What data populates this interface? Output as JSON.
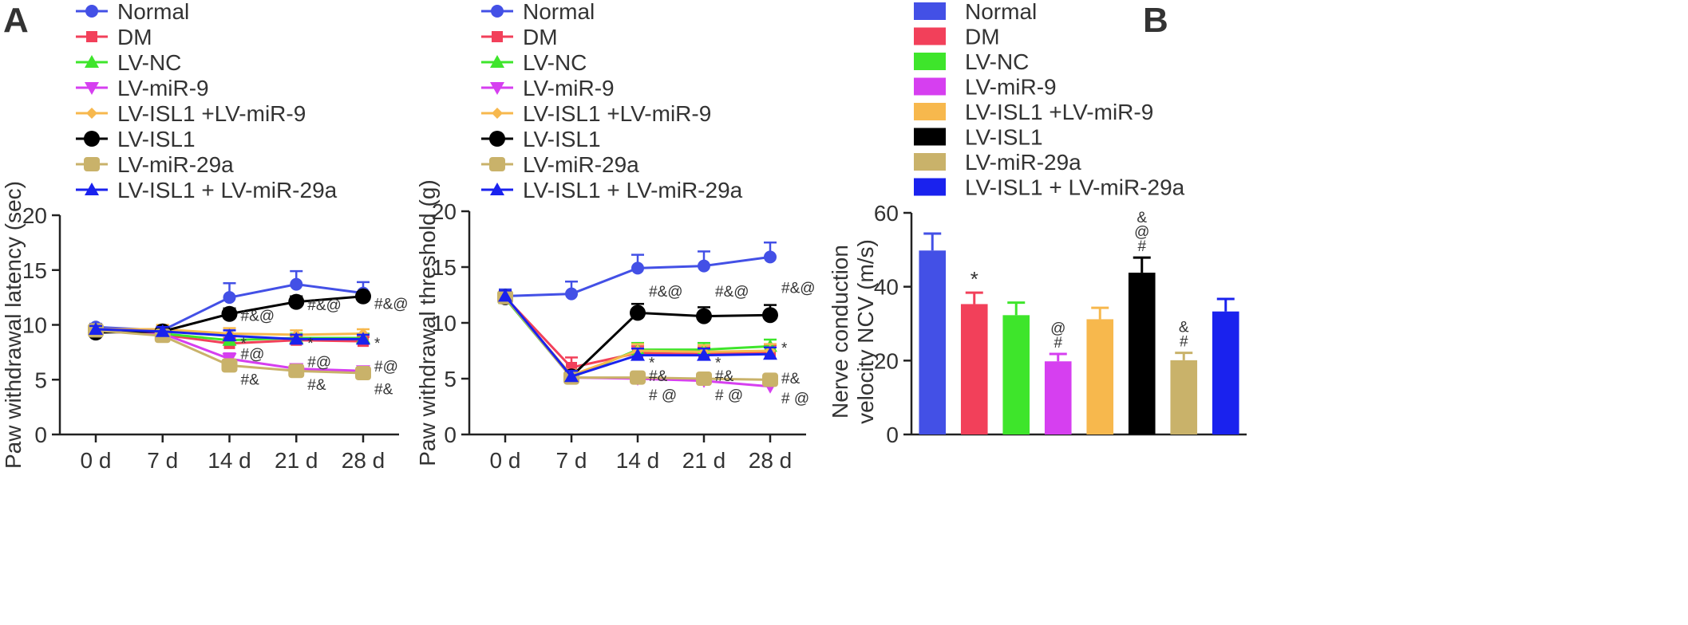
{
  "panels": {
    "a_letter": "A",
    "b_letter": "B"
  },
  "groups": [
    {
      "name": "Normal",
      "color": "#4350e6",
      "marker": "circle"
    },
    {
      "name": "DM",
      "color": "#f2405a",
      "marker": "square"
    },
    {
      "name": "LV-NC",
      "color": "#3ee52b",
      "marker": "triangle-up"
    },
    {
      "name": "LV-miR-9",
      "color": "#d63ff0",
      "marker": "triangle-down"
    },
    {
      "name": "LV-ISL1 +LV-miR-9",
      "color": "#f7b84d",
      "marker": "diamond"
    },
    {
      "name": "LV-ISL1",
      "color": "#000000",
      "marker": "circle-big"
    },
    {
      "name": "LV-miR-29a",
      "color": "#c9b26a",
      "marker": "square-round"
    },
    {
      "name": "LV-ISL1 + LV-miR-29a",
      "color": "#1a22ee",
      "marker": "triangle-up"
    }
  ],
  "chart_data": [
    {
      "type": "line",
      "ylabel": "Paw withdrawal latency (sec)",
      "categories": [
        "0 d",
        "7 d",
        "14 d",
        "21 d",
        "28 d"
      ],
      "ylim": [
        0,
        20
      ],
      "yticks": [
        0,
        5,
        10,
        15,
        20
      ],
      "series": [
        {
          "name": "Normal",
          "values": [
            9.8,
            9.5,
            12.5,
            13.7,
            12.9
          ],
          "errors": [
            0.3,
            0.4,
            1.3,
            1.2,
            1.0
          ]
        },
        {
          "name": "DM",
          "values": [
            9.5,
            9.1,
            8.3,
            8.6,
            8.5
          ],
          "errors": [
            0.3,
            0.4,
            0.5,
            0.4,
            0.4
          ]
        },
        {
          "name": "LV-NC",
          "values": [
            9.5,
            9.2,
            8.6,
            8.8,
            8.8
          ],
          "errors": [
            0.3,
            0.4,
            0.5,
            0.4,
            0.4
          ]
        },
        {
          "name": "LV-miR-9",
          "values": [
            9.4,
            9.2,
            6.9,
            6.0,
            5.8
          ],
          "errors": [
            0.3,
            0.4,
            0.5,
            0.4,
            0.4
          ]
        },
        {
          "name": "LV-ISL1 +LV-miR-9",
          "values": [
            9.6,
            9.6,
            9.2,
            9.1,
            9.2
          ],
          "errors": [
            0.3,
            0.4,
            0.5,
            0.4,
            0.4
          ]
        },
        {
          "name": "LV-ISL1",
          "values": [
            9.3,
            9.4,
            11.0,
            12.1,
            12.6
          ],
          "errors": [
            0.3,
            0.4,
            0.5,
            0.5,
            0.4
          ]
        },
        {
          "name": "LV-miR-29a",
          "values": [
            9.5,
            9.0,
            6.3,
            5.8,
            5.6
          ],
          "errors": [
            0.3,
            0.4,
            0.5,
            0.4,
            0.4
          ]
        },
        {
          "name": "LV-ISL1 + LV-miR-29a",
          "values": [
            9.6,
            9.4,
            9.0,
            8.7,
            8.7
          ],
          "errors": [
            0.3,
            0.4,
            0.5,
            0.4,
            0.4
          ]
        }
      ],
      "annotations": [
        {
          "text": "#&@",
          "x": "14 d",
          "y": 10.8
        },
        {
          "text": "*",
          "x": "14 d",
          "y": 8.3
        },
        {
          "text": "#@",
          "x": "14 d",
          "y": 7.3
        },
        {
          "text": "#&",
          "x": "14 d",
          "y": 5.0
        },
        {
          "text": "#&@",
          "x": "21 d",
          "y": 11.8
        },
        {
          "text": "*",
          "x": "21 d",
          "y": 8.3
        },
        {
          "text": "#@",
          "x": "21 d",
          "y": 6.6
        },
        {
          "text": "#&",
          "x": "21 d",
          "y": 4.5
        },
        {
          "text": "#&@",
          "x": "28 d",
          "y": 11.9
        },
        {
          "text": "*",
          "x": "28 d",
          "y": 8.3
        },
        {
          "text": "#@",
          "x": "28 d",
          "y": 6.2
        },
        {
          "text": "#&",
          "x": "28 d",
          "y": 4.1
        }
      ]
    },
    {
      "type": "line",
      "ylabel": "Paw withdrawal threshold (g)",
      "categories": [
        "0 d",
        "7 d",
        "14 d",
        "21 d",
        "28 d"
      ],
      "ylim": [
        0,
        20
      ],
      "yticks": [
        0,
        5,
        10,
        15,
        20
      ],
      "series": [
        {
          "name": "Normal",
          "values": [
            12.4,
            12.6,
            14.9,
            15.1,
            15.9
          ],
          "errors": [
            0.6,
            1.1,
            1.2,
            1.3,
            1.3
          ]
        },
        {
          "name": "DM",
          "values": [
            12.3,
            6.0,
            7.3,
            7.2,
            7.4
          ],
          "errors": [
            0.5,
            0.9,
            0.6,
            0.6,
            0.6
          ]
        },
        {
          "name": "LV-NC",
          "values": [
            12.2,
            5.1,
            7.6,
            7.6,
            7.9
          ],
          "errors": [
            0.5,
            0.5,
            0.6,
            0.6,
            0.6
          ]
        },
        {
          "name": "LV-miR-9",
          "values": [
            12.3,
            5.1,
            5.0,
            4.8,
            4.3
          ],
          "errors": [
            0.5,
            0.5,
            0.4,
            0.4,
            0.4
          ]
        },
        {
          "name": "LV-ISL1 +LV-miR-9",
          "values": [
            12.3,
            5.3,
            7.5,
            7.4,
            7.5
          ],
          "errors": [
            0.5,
            0.5,
            0.6,
            0.6,
            0.6
          ]
        },
        {
          "name": "LV-ISL1",
          "values": [
            12.3,
            5.2,
            10.9,
            10.6,
            10.7
          ],
          "errors": [
            0.5,
            0.5,
            0.8,
            0.8,
            0.9
          ]
        },
        {
          "name": "LV-miR-29a",
          "values": [
            12.3,
            5.1,
            5.1,
            5.0,
            4.9
          ],
          "errors": [
            0.5,
            0.5,
            0.4,
            0.4,
            0.4
          ]
        },
        {
          "name": "LV-ISL1 + LV-miR-29a",
          "values": [
            12.4,
            5.2,
            7.1,
            7.1,
            7.2
          ],
          "errors": [
            0.5,
            0.5,
            0.6,
            0.6,
            0.6
          ]
        }
      ],
      "annotations": [
        {
          "text": "#&@",
          "x": "14 d",
          "y": 12.8
        },
        {
          "text": "*",
          "x": "14 d",
          "y": 6.4
        },
        {
          "text": "#&",
          "x": "14 d",
          "y": 5.2
        },
        {
          "text": "# @",
          "x": "14 d",
          "y": 3.5
        },
        {
          "text": "#&@",
          "x": "21 d",
          "y": 12.8
        },
        {
          "text": "*",
          "x": "21 d",
          "y": 6.4
        },
        {
          "text": "#&",
          "x": "21 d",
          "y": 5.2
        },
        {
          "text": "# @",
          "x": "21 d",
          "y": 3.5
        },
        {
          "text": "#&@",
          "x": "28 d",
          "y": 13.1
        },
        {
          "text": "*",
          "x": "28 d",
          "y": 7.7
        },
        {
          "text": "#&",
          "x": "28 d",
          "y": 5.0
        },
        {
          "text": "# @",
          "x": "28 d",
          "y": 3.2
        }
      ]
    },
    {
      "type": "bar",
      "ylabel": "Nerve conduction velocity NCV (m/s)",
      "categories": [
        "Normal",
        "DM",
        "LV-NC",
        "LV-miR-9",
        "LV-ISL1 +LV-miR-9",
        "LV-ISL1",
        "LV-miR-29a",
        "LV-ISL1 + LV-miR-29a"
      ],
      "values": [
        49.8,
        35.3,
        32.3,
        19.8,
        31.2,
        43.8,
        20.1,
        33.3
      ],
      "errors": [
        4.6,
        3.1,
        3.4,
        2.0,
        3.1,
        4.1,
        2.0,
        3.4
      ],
      "ylim": [
        0,
        60
      ],
      "yticks": [
        0,
        20,
        40,
        60
      ],
      "annotations": [
        {
          "category": "DM",
          "lines": [
            "*"
          ]
        },
        {
          "category": "LV-miR-9",
          "lines": [
            "@",
            "#"
          ]
        },
        {
          "category": "LV-ISL1",
          "lines": [
            "&",
            "@",
            "#"
          ]
        },
        {
          "category": "LV-miR-29a",
          "lines": [
            "&",
            "#"
          ]
        }
      ]
    }
  ]
}
